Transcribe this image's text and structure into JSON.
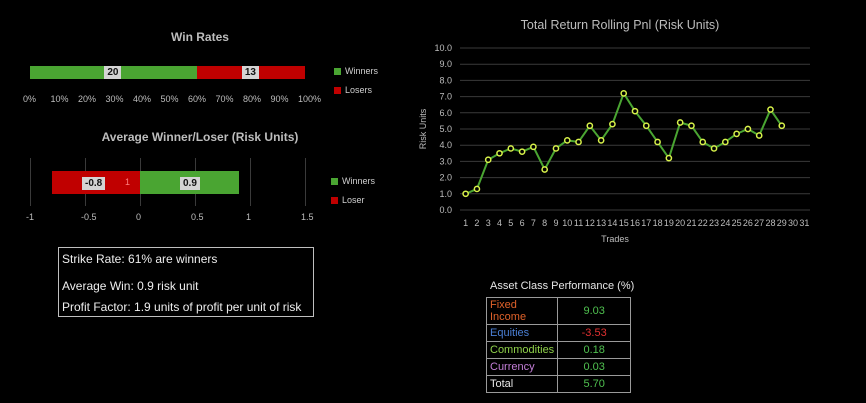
{
  "win_rates": {
    "title": "Win Rates",
    "winners": 20,
    "losers": 13,
    "winner_pct": 60.6,
    "axis_ticks": [
      "0%",
      "10%",
      "20%",
      "30%",
      "40%",
      "50%",
      "60%",
      "70%",
      "80%",
      "90%",
      "100%"
    ],
    "legend": {
      "winners": "Winners",
      "losers": "Losers"
    },
    "colors": {
      "winners": "#4aa532",
      "losers": "#c00000"
    }
  },
  "avg_win_loss": {
    "title": "Average Winner/Loser (Risk Units)",
    "winner": 0.9,
    "loser": -0.8,
    "winner_label": "0.9",
    "loser_label": "-0.8",
    "inner_label": "1",
    "axis_ticks": [
      "-1",
      "-0.5",
      "0",
      "0.5",
      "1",
      "1.5"
    ],
    "legend": {
      "winners": "Winners",
      "losers": "Loser"
    }
  },
  "stats": {
    "strike_rate": "Strike Rate: 61% are winners",
    "avg_win": "Average Win: 0.9 risk unit",
    "profit_factor": "Profit Factor: 1.9 units of profit per unit of risk"
  },
  "asset_perf": {
    "title": "Asset Class Performance (%)",
    "rows": [
      {
        "name": "Fixed Income",
        "value": "9.03",
        "name_color": "#e0622a",
        "value_color": "#4fc04f"
      },
      {
        "name": "Equities",
        "value": "-3.53",
        "name_color": "#4a7fd4",
        "value_color": "#e03030"
      },
      {
        "name": "Commodities",
        "value": "0.18",
        "name_color": "#8fd14a",
        "value_color": "#4fc04f"
      },
      {
        "name": "Currency",
        "value": "0.03",
        "name_color": "#c47fd8",
        "value_color": "#4fc04f"
      },
      {
        "name": "Total",
        "value": "5.70",
        "name_color": "#e8e8e8",
        "value_color": "#4fc04f"
      }
    ]
  },
  "chart_data": {
    "type": "line",
    "title": "Total Return Rolling Pnl (Risk Units)",
    "xlabel": "Trades",
    "ylabel": "Risk Units",
    "x": [
      1,
      2,
      3,
      4,
      5,
      6,
      7,
      8,
      9,
      10,
      11,
      12,
      13,
      14,
      15,
      16,
      17,
      18,
      19,
      20,
      21,
      22,
      23,
      24,
      25,
      26,
      27,
      28,
      29
    ],
    "values": [
      1.0,
      1.3,
      3.1,
      3.5,
      3.8,
      3.6,
      3.9,
      2.5,
      3.8,
      4.3,
      4.2,
      5.2,
      4.3,
      5.3,
      7.2,
      6.1,
      5.2,
      4.2,
      3.2,
      5.4,
      5.2,
      4.2,
      3.8,
      4.2,
      4.7,
      5.0,
      4.6,
      6.2,
      5.2
    ],
    "x_ticks": [
      "1",
      "2",
      "3",
      "4",
      "5",
      "6",
      "7",
      "8",
      "9",
      "10",
      "11",
      "12",
      "13",
      "14",
      "15",
      "16",
      "17",
      "18",
      "19",
      "20",
      "21",
      "22",
      "23",
      "24",
      "25",
      "26",
      "27",
      "28",
      "29",
      "30",
      "31"
    ],
    "y_ticks": [
      "0.0",
      "1.0",
      "2.0",
      "3.0",
      "4.0",
      "5.0",
      "6.0",
      "7.0",
      "8.0",
      "9.0",
      "10.0"
    ],
    "ylim": [
      0,
      10
    ],
    "grid": true,
    "line_color": "#4aa532",
    "marker_color": "#d8f24a"
  }
}
